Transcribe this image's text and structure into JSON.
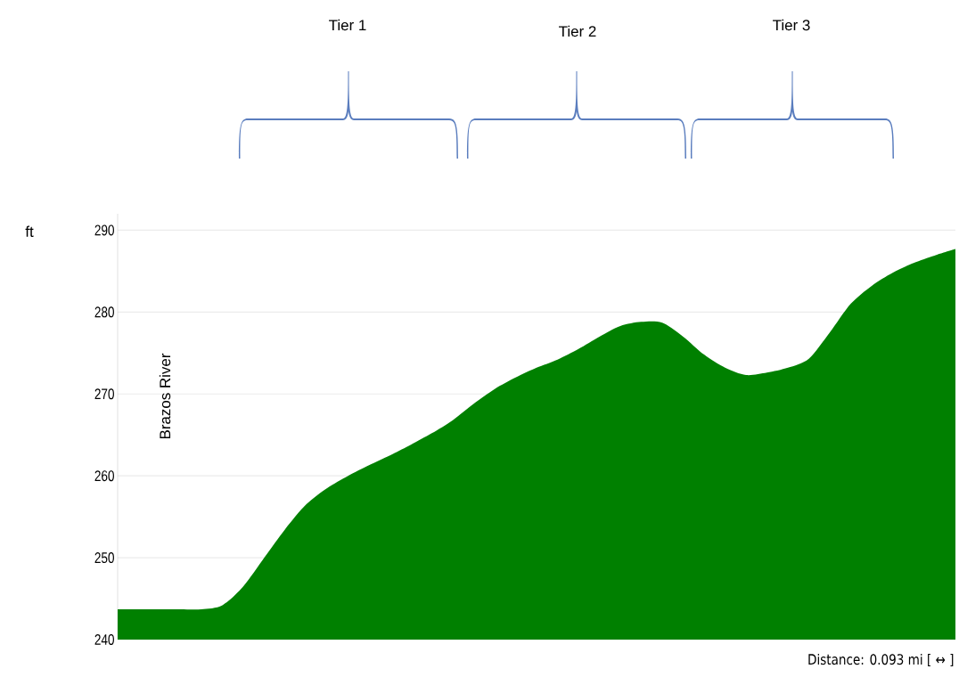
{
  "chart_data": {
    "type": "area",
    "ylabel": "ft",
    "categories": [
      null,
      null,
      null,
      null,
      null,
      null,
      null,
      null,
      null,
      null,
      null,
      null,
      null,
      null,
      null,
      null,
      null,
      null,
      null,
      null,
      null,
      null,
      null,
      null,
      null,
      null,
      null,
      null,
      null,
      null,
      null,
      null,
      null,
      null,
      null,
      null,
      null,
      null,
      null,
      null,
      null
    ],
    "values": [
      243.7,
      243.7,
      243.7,
      243.7,
      243.7,
      244.2,
      246.5,
      250,
      253.5,
      256.5,
      258.5,
      260,
      261.3,
      262.5,
      263.8,
      265.2,
      266.8,
      268.8,
      270.6,
      272,
      273.2,
      274.2,
      275.5,
      277,
      278.3,
      278.8,
      278.7,
      277,
      274.8,
      273.2,
      272.3,
      272.6,
      273.2,
      274.3,
      277.5,
      281,
      283.2,
      284.8,
      286,
      286.9,
      287.7
    ],
    "color": "#008000",
    "ylim": [
      240,
      292
    ],
    "yticks": [
      240,
      250,
      260,
      270,
      280,
      290
    ],
    "grid": "y",
    "annotations": [
      "Tier 1",
      "Tier 2",
      "Tier 3",
      "Brazos River",
      "Distance: 0.093 mi [ ↔ ]"
    ]
  }
}
